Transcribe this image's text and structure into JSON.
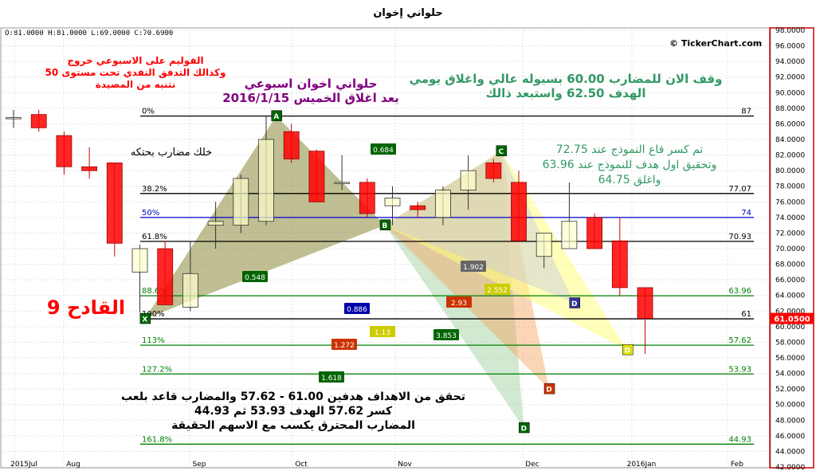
{
  "title": "حلواني إخوان",
  "ohlc": "O:81.0000  H:81.0000  L:69.0000  C:70.6900",
  "credit": "© TickerChart.com",
  "last_price": "61.0500",
  "colors": {
    "bull": "#ffffcc",
    "bear": "#ff0000",
    "grid": "#cccccc",
    "axis_border": "#cc0000"
  },
  "chart_data": {
    "type": "candlestick",
    "yaxis": {
      "min": 42,
      "max": 98,
      "ticks": [
        "98.0000",
        "96.0000",
        "94.0000",
        "92.0000",
        "90.0000",
        "88.0000",
        "86.0000",
        "84.0000",
        "82.0000",
        "80.0000",
        "78.0000",
        "76.0000",
        "74.0000",
        "72.0000",
        "70.0000",
        "68.0000",
        "66.0000",
        "64.0000",
        "62.0000",
        "60.0000",
        "58.0000",
        "56.0000",
        "54.0000",
        "52.0000",
        "50.0000",
        "48.0000",
        "46.0000",
        "44.0000",
        "42.0000"
      ]
    },
    "xaxis": {
      "labels": [
        "2015Jul",
        "Aug",
        "Sep",
        "Oct",
        "Nov",
        "Dec",
        "2016Jan",
        "Feb"
      ]
    },
    "candles": [
      {
        "o": 86.8,
        "h": 87.8,
        "l": 85.5,
        "c": 86.8
      },
      {
        "o": 87.2,
        "h": 87.8,
        "l": 85.0,
        "c": 85.5
      },
      {
        "o": 84.5,
        "h": 85.0,
        "l": 79.5,
        "c": 80.5
      },
      {
        "o": 80.5,
        "h": 83.0,
        "l": 79.0,
        "c": 80.0
      },
      {
        "o": 81.0,
        "h": 81.0,
        "l": 69.0,
        "c": 70.69
      },
      {
        "o": 67.0,
        "h": 70.5,
        "l": 61.8,
        "c": 70.0
      },
      {
        "o": 70.0,
        "h": 71.0,
        "l": 63.0,
        "c": 62.8
      },
      {
        "o": 62.5,
        "h": 71.0,
        "l": 62.0,
        "c": 66.8
      },
      {
        "o": 73.0,
        "h": 76.0,
        "l": 70.0,
        "c": 73.5
      },
      {
        "o": 73.0,
        "h": 79.5,
        "l": 72.0,
        "c": 79.0
      },
      {
        "o": 73.5,
        "h": 87.0,
        "l": 73.0,
        "c": 84.0
      },
      {
        "o": 85.0,
        "h": 86.0,
        "l": 81.0,
        "c": 81.5
      },
      {
        "o": 82.5,
        "h": 82.7,
        "l": 76.0,
        "c": 76.0
      },
      {
        "o": 78.5,
        "h": 82.0,
        "l": 77.5,
        "c": 78.5
      },
      {
        "o": 78.5,
        "h": 79.0,
        "l": 74.0,
        "c": 74.5
      },
      {
        "o": 75.5,
        "h": 78.0,
        "l": 73.0,
        "c": 76.5
      },
      {
        "o": 75.5,
        "h": 76.0,
        "l": 74.0,
        "c": 75.0
      },
      {
        "o": 74.0,
        "h": 78.0,
        "l": 73.0,
        "c": 77.5
      },
      {
        "o": 77.5,
        "h": 82.0,
        "l": 75.0,
        "c": 80.0
      },
      {
        "o": 81.0,
        "h": 81.5,
        "l": 78.5,
        "c": 79.0
      },
      {
        "o": 78.5,
        "h": 80.0,
        "l": 71.0,
        "c": 71.0
      },
      {
        "o": 69.0,
        "h": 72.0,
        "l": 67.5,
        "c": 72.0
      },
      {
        "o": 70.0,
        "h": 78.5,
        "l": 70.0,
        "c": 73.5
      },
      {
        "o": 74.0,
        "h": 74.5,
        "l": 70.0,
        "c": 70.0
      },
      {
        "o": 71.0,
        "h": 74.0,
        "l": 64.0,
        "c": 65.0
      },
      {
        "o": 65.0,
        "h": 65.0,
        "l": 56.5,
        "c": 61.05
      }
    ],
    "fib_levels": [
      {
        "pct": "0%",
        "val": "87",
        "y": 87,
        "color": "#000000"
      },
      {
        "pct": "38.2%",
        "val": "77.07",
        "y": 77.07,
        "color": "#000000"
      },
      {
        "pct": "50%",
        "val": "74",
        "y": 74,
        "color": "#0000cc"
      },
      {
        "pct": "61.8%",
        "val": "70.93",
        "y": 70.93,
        "color": "#000000"
      },
      {
        "pct": "88.6%",
        "val": "63.96",
        "y": 63.96,
        "color": "#008000"
      },
      {
        "pct": "100%",
        "val": "61",
        "y": 61,
        "color": "#000000"
      },
      {
        "pct": "113%",
        "val": "57.62",
        "y": 57.62,
        "color": "#008000"
      },
      {
        "pct": "127.2%",
        "val": "53.93",
        "y": 53.93,
        "color": "#008000"
      },
      {
        "pct": "161.8%",
        "val": "44.93",
        "y": 44.93,
        "color": "#008000"
      }
    ],
    "points": [
      {
        "label": "A",
        "y": 87,
        "bg": "#006400"
      },
      {
        "label": "B",
        "y": 73,
        "bg": "#006400"
      },
      {
        "label": "C",
        "y": 82.5,
        "bg": "#006400"
      },
      {
        "label": "X",
        "y": 61,
        "bg": "#006400"
      },
      {
        "label": "D",
        "y": 63,
        "bg": "#333399"
      },
      {
        "label": "D",
        "y": 57,
        "bg": "#dddd00"
      },
      {
        "label": "D",
        "y": 52,
        "bg": "#cc3300"
      },
      {
        "label": "D",
        "y": 47,
        "bg": "#006400"
      }
    ],
    "ratio_labels": [
      {
        "text": "0.684",
        "bg": "#006400"
      },
      {
        "text": "0.548",
        "bg": "#006400"
      },
      {
        "text": "1.902",
        "bg": "#666666"
      },
      {
        "text": "2.552",
        "bg": "#cccc00"
      },
      {
        "text": "2.93",
        "bg": "#cc3300"
      },
      {
        "text": "0.886",
        "bg": "#0000aa"
      },
      {
        "text": "1.13",
        "bg": "#cccc00"
      },
      {
        "text": "3.853",
        "bg": "#006400"
      },
      {
        "text": "1.272",
        "bg": "#cc3300"
      },
      {
        "text": "1.618",
        "bg": "#006400"
      }
    ]
  },
  "annotations": {
    "red_block": [
      "الفوليم على الاسبوعي خروج",
      "وكذالك التدفق النقدي تحت مستوى 50",
      "نتنبه من المصيدة"
    ],
    "purple_block": [
      "حلواني اخوان اسبوعي",
      "بعد اغلاق الخميس 2016/1/15"
    ],
    "green_top": [
      "وقف الان للمضارب 60.00 بسيوله عالي واغلاق يومي",
      "الهدف 62.50 واستبعد ذالك"
    ],
    "pattern_note": "خلك مضارب بحتكه",
    "green_mid": [
      "تم كسر قاع النموذج عند 72.75",
      "وتحقيق اول هدف للنموذج عند 63.96",
      "واغلق 64.75"
    ],
    "big_red": "القادح 9",
    "bottom_block": [
      "تحقق من الاهداف هدفين 61.00 - 57.62 والمضارب قاعد بلعب",
      "كسر 57.62 الهدف 53.93 ثم 44.93",
      "المضارب المحترق يكسب مع الاسهم الحقيقة"
    ]
  }
}
